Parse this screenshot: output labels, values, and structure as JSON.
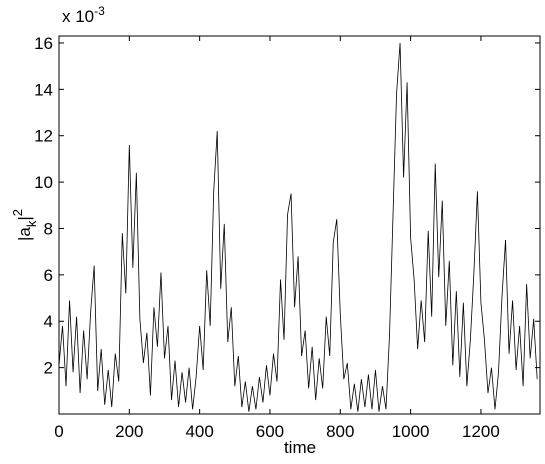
{
  "chart_data": {
    "type": "line",
    "xlabel": "time",
    "ylabel": {
      "base": "|a",
      "sub": "k",
      "mid": "|",
      "sup": "2"
    },
    "multiplier": {
      "base": "x 10",
      "sup": "-3"
    },
    "color": "#000000",
    "xlim": [
      0,
      1368
    ],
    "xticks": [
      0,
      200,
      400,
      600,
      800,
      1000,
      1200
    ],
    "ylim": [
      0,
      16.3
    ],
    "yticks": [
      2,
      4,
      6,
      8,
      10,
      12,
      14,
      16
    ],
    "x": [
      0,
      10,
      20,
      30,
      40,
      50,
      60,
      70,
      80,
      90,
      100,
      110,
      120,
      130,
      140,
      150,
      160,
      170,
      180,
      190,
      200,
      210,
      220,
      230,
      240,
      250,
      260,
      270,
      280,
      290,
      300,
      310,
      320,
      330,
      340,
      350,
      360,
      370,
      380,
      390,
      400,
      410,
      420,
      430,
      440,
      450,
      460,
      470,
      480,
      490,
      500,
      510,
      520,
      530,
      540,
      550,
      560,
      570,
      580,
      590,
      600,
      610,
      620,
      630,
      640,
      650,
      660,
      670,
      680,
      690,
      700,
      710,
      720,
      730,
      740,
      750,
      760,
      770,
      780,
      790,
      800,
      810,
      820,
      830,
      840,
      850,
      860,
      870,
      880,
      890,
      900,
      910,
      920,
      930,
      940,
      950,
      960,
      970,
      980,
      990,
      1000,
      1010,
      1020,
      1030,
      1040,
      1050,
      1060,
      1070,
      1080,
      1090,
      1100,
      1110,
      1120,
      1130,
      1140,
      1150,
      1160,
      1170,
      1180,
      1190,
      1200,
      1210,
      1220,
      1230,
      1240,
      1250,
      1260,
      1270,
      1280,
      1290,
      1300,
      1310,
      1320,
      1330,
      1340,
      1350,
      1360
    ],
    "values": [
      2.1,
      3.8,
      1.2,
      4.9,
      1.8,
      4.2,
      0.9,
      3.6,
      1.5,
      4.4,
      6.4,
      1.0,
      2.8,
      0.4,
      1.9,
      0.3,
      2.6,
      1.4,
      7.8,
      5.2,
      11.6,
      6.3,
      10.4,
      4.1,
      2.2,
      3.5,
      0.8,
      4.6,
      2.9,
      6.1,
      2.4,
      3.8,
      0.6,
      2.3,
      0.3,
      1.8,
      0.5,
      2.0,
      0.2,
      1.6,
      3.8,
      1.9,
      6.2,
      3.8,
      9.6,
      12.2,
      5.4,
      8.2,
      3.1,
      4.6,
      1.2,
      2.5,
      0.3,
      1.4,
      0.1,
      1.2,
      0.2,
      1.6,
      0.5,
      2.1,
      0.8,
      2.6,
      1.4,
      5.8,
      3.2,
      8.6,
      9.5,
      4.6,
      6.8,
      2.5,
      3.6,
      1.1,
      2.9,
      0.6,
      2.4,
      1.1,
      4.2,
      2.5,
      7.4,
      8.4,
      4.3,
      1.5,
      2.2,
      0.2,
      1.3,
      0.1,
      1.5,
      0.3,
      1.7,
      0.2,
      1.9,
      0.1,
      1.2,
      0.2,
      3.4,
      8.6,
      13.8,
      16.0,
      10.2,
      14.3,
      7.6,
      5.8,
      2.8,
      4.9,
      3.1,
      7.9,
      4.2,
      10.8,
      5.9,
      9.2,
      3.8,
      6.6,
      2.1,
      5.3,
      1.6,
      4.8,
      1.2,
      3.2,
      6.1,
      9.6,
      4.8,
      3.2,
      0.9,
      2.0,
      0.2,
      1.8,
      5.1,
      7.5,
      2.6,
      4.9,
      1.9,
      3.8,
      1.2,
      5.6,
      2.4,
      4.1,
      1.5
    ]
  }
}
